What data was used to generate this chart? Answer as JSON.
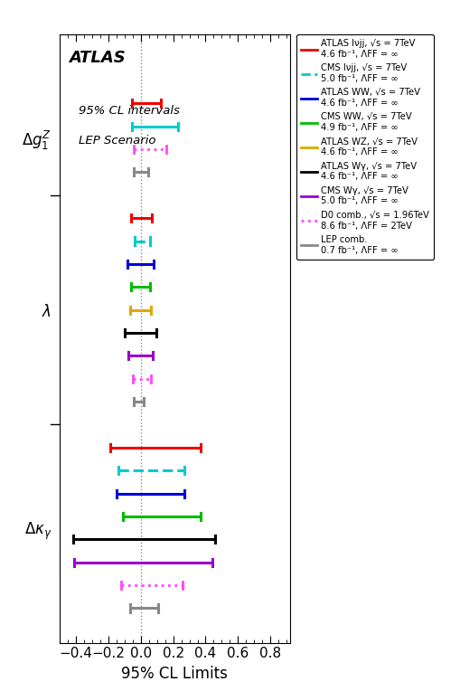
{
  "xlabel": "95% CL Limits",
  "xlim": [
    -0.5,
    0.92
  ],
  "xticks": [
    -0.4,
    -0.2,
    0.0,
    0.2,
    0.4,
    0.6,
    0.8
  ],
  "vline_x": 0.0,
  "dg1z_bars": [
    {
      "xlo": -0.054,
      "xhi": 0.126,
      "color": "#ee0000",
      "linestyle": "solid",
      "lw": 2.2
    },
    {
      "xlo": -0.057,
      "xhi": 0.228,
      "color": "#00cccc",
      "linestyle": "solid",
      "lw": 2.2
    },
    {
      "xlo": -0.042,
      "xhi": 0.157,
      "color": "#ff44ff",
      "linestyle": "dotted",
      "lw": 2.0
    },
    {
      "xlo": -0.045,
      "xhi": 0.045,
      "color": "#888888",
      "linestyle": "solid",
      "lw": 2.2
    }
  ],
  "lambda_bars": [
    {
      "xlo": -0.059,
      "xhi": 0.07,
      "color": "#ee0000",
      "linestyle": "solid",
      "lw": 2.2
    },
    {
      "xlo": -0.04,
      "xhi": 0.058,
      "color": "#00cccc",
      "linestyle": "dashed",
      "lw": 2.2
    },
    {
      "xlo": -0.082,
      "xhi": 0.082,
      "color": "#0000dd",
      "linestyle": "solid",
      "lw": 2.2
    },
    {
      "xlo": -0.059,
      "xhi": 0.059,
      "color": "#00bb00",
      "linestyle": "solid",
      "lw": 2.2
    },
    {
      "xlo": -0.064,
      "xhi": 0.064,
      "color": "#ddaa00",
      "linestyle": "solid",
      "lw": 2.2
    },
    {
      "xlo": -0.097,
      "xhi": 0.097,
      "color": "#000000",
      "linestyle": "solid",
      "lw": 2.2
    },
    {
      "xlo": -0.076,
      "xhi": 0.076,
      "color": "#9900cc",
      "linestyle": "solid",
      "lw": 2.2
    },
    {
      "xlo": -0.05,
      "xhi": 0.063,
      "color": "#ff44ff",
      "linestyle": "dotted",
      "lw": 2.0
    },
    {
      "xlo": -0.045,
      "xhi": 0.02,
      "color": "#888888",
      "linestyle": "solid",
      "lw": 2.2
    }
  ],
  "dkappa_bars": [
    {
      "xlo": -0.19,
      "xhi": 0.37,
      "color": "#ee0000",
      "linestyle": "solid",
      "lw": 2.2
    },
    {
      "xlo": -0.14,
      "xhi": 0.27,
      "color": "#00cccc",
      "linestyle": "dashed",
      "lw": 2.2
    },
    {
      "xlo": -0.15,
      "xhi": 0.27,
      "color": "#0000dd",
      "linestyle": "solid",
      "lw": 2.2
    },
    {
      "xlo": -0.11,
      "xhi": 0.37,
      "color": "#00bb00",
      "linestyle": "solid",
      "lw": 2.2
    },
    {
      "xlo": -0.42,
      "xhi": 0.46,
      "color": "#000000",
      "linestyle": "solid",
      "lw": 2.2
    },
    {
      "xlo": -0.41,
      "xhi": 0.44,
      "color": "#9900cc",
      "linestyle": "solid",
      "lw": 2.2
    },
    {
      "xlo": -0.12,
      "xhi": 0.26,
      "color": "#ff44ff",
      "linestyle": "dotted",
      "lw": 2.0
    },
    {
      "xlo": -0.065,
      "xhi": 0.11,
      "color": "#888888",
      "linestyle": "solid",
      "lw": 2.2
    }
  ],
  "legend_entries": [
    {
      "label": "ATLAS lνjj, √s = 7TeV\n4.6 fb⁻¹, ΛFF = ∞",
      "color": "#ee0000",
      "linestyle": "solid"
    },
    {
      "label": "CMS lνjj, √s = 7TeV\n5.0 fb⁻¹, ΛFF = ∞",
      "color": "#00cccc",
      "linestyle": "dashed"
    },
    {
      "label": "ATLAS WW, √s = 7TeV\n4.6 fb⁻¹, ΛFF = ∞",
      "color": "#0000dd",
      "linestyle": "solid"
    },
    {
      "label": "CMS WW, √s = 7TeV\n4.9 fb⁻¹, ΛFF = ∞",
      "color": "#00bb00",
      "linestyle": "solid"
    },
    {
      "label": "ATLAS WZ, √s = 7TeV\n4.6 fb⁻¹, ΛFF = ∞",
      "color": "#ddaa00",
      "linestyle": "solid"
    },
    {
      "label": "ATLAS Wγ, √s = 7TeV\n4.6 fb⁻¹, ΛFF = ∞",
      "color": "#000000",
      "linestyle": "solid"
    },
    {
      "label": "CMS Wγ, √s = 7TeV\n5.0 fb⁻¹, ΛFF = ∞",
      "color": "#9900cc",
      "linestyle": "solid"
    },
    {
      "label": "D0 comb., √s = 1.96TeV\n8.6 fb⁻¹, ΛFF = 2TeV",
      "color": "#ff44ff",
      "linestyle": "dotted"
    },
    {
      "label": "LEP comb.\n0.7 fb⁻¹, ΛFF = ∞",
      "color": "#888888",
      "linestyle": "solid"
    }
  ]
}
